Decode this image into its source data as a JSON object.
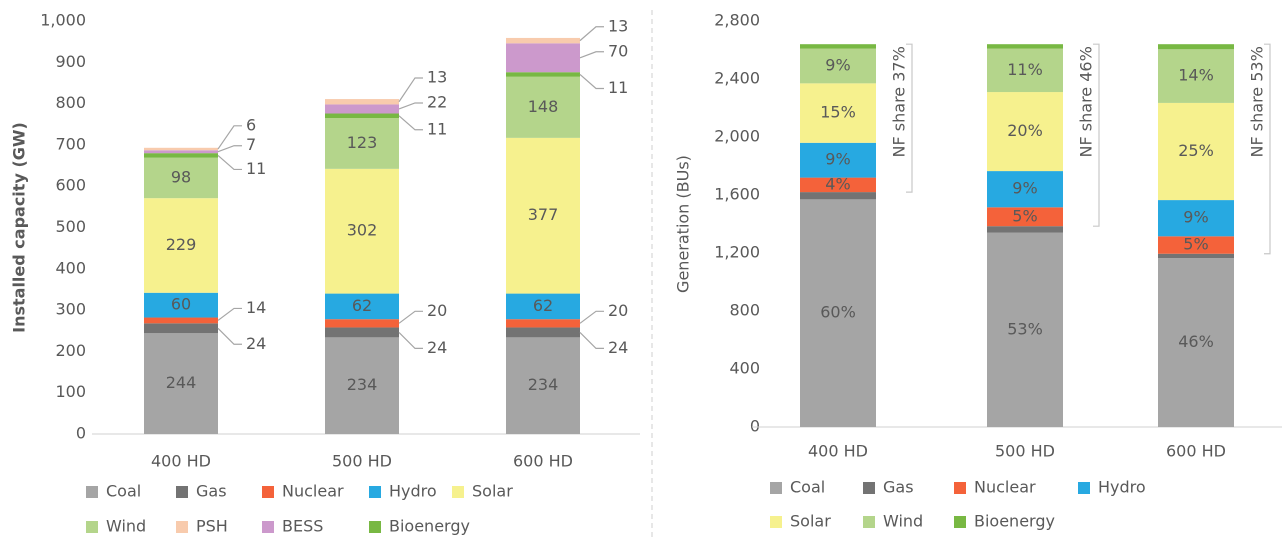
{
  "chart_data": [
    {
      "type": "bar",
      "stacked": true,
      "ylabel": "Installed capacity (GW)",
      "categories": [
        "400 HD",
        "500 HD",
        "600 HD"
      ],
      "ylim": [
        0,
        1000
      ],
      "yticks": [
        0,
        100,
        200,
        300,
        400,
        500,
        600,
        700,
        800,
        900,
        {
          "value": 1000,
          "label": "1,000"
        }
      ],
      "series": [
        {
          "name": "Coal",
          "color": "#a5a5a5",
          "values": [
            244,
            234,
            234
          ]
        },
        {
          "name": "Gas",
          "color": "#737373",
          "values": [
            24,
            24,
            24
          ]
        },
        {
          "name": "Nuclear",
          "color": "#f4623a",
          "values": [
            14,
            20,
            20
          ]
        },
        {
          "name": "Hydro",
          "color": "#27a9e1",
          "values": [
            60,
            62,
            62
          ]
        },
        {
          "name": "Solar",
          "color": "#f6f18e",
          "values": [
            229,
            302,
            377
          ]
        },
        {
          "name": "Wind",
          "color": "#b4d58b",
          "values": [
            98,
            123,
            148
          ]
        },
        {
          "name": "Bioenergy",
          "color": "#78b843",
          "values": [
            11,
            11,
            11
          ]
        },
        {
          "name": "BESS",
          "color": "#cc99cc",
          "values": [
            7,
            22,
            70
          ]
        },
        {
          "name": "PSH",
          "color": "#f8cbad",
          "values": [
            6,
            13,
            13
          ]
        }
      ]
    },
    {
      "type": "bar",
      "stacked": true,
      "ylabel": "Generation (BUs)",
      "categories": [
        "400 HD",
        "500 HD",
        "600 HD"
      ],
      "ylim": [
        0,
        2800
      ],
      "yticks": [
        0,
        400,
        800,
        {
          "value": 1200,
          "label": "1,200"
        },
        {
          "value": 1600,
          "label": "1,600"
        },
        {
          "value": 2000,
          "label": "2,000"
        },
        {
          "value": 2400,
          "label": "2,400"
        },
        {
          "value": 2800,
          "label": "2,800"
        }
      ],
      "annotations": [
        "NF share 37%",
        "NF share 46%",
        "NF share 53%"
      ],
      "series": [
        {
          "name": "Coal",
          "color": "#a5a5a5",
          "values": [
            1570,
            1340,
            1165
          ],
          "value_labels": [
            "60%",
            "53%",
            "46%"
          ]
        },
        {
          "name": "Gas",
          "color": "#737373",
          "values": [
            50,
            45,
            30
          ]
        },
        {
          "name": "Nuclear",
          "color": "#f4623a",
          "values": [
            100,
            130,
            120
          ],
          "value_labels": [
            "4%",
            "5%",
            "5%"
          ]
        },
        {
          "name": "Hydro",
          "color": "#27a9e1",
          "values": [
            240,
            250,
            250
          ],
          "value_labels": [
            "9%",
            "9%",
            "9%"
          ]
        },
        {
          "name": "Solar",
          "color": "#f6f18e",
          "values": [
            410,
            545,
            670
          ],
          "value_labels": [
            "15%",
            "20%",
            "25%"
          ]
        },
        {
          "name": "Wind",
          "color": "#b4d58b",
          "values": [
            240,
            300,
            370
          ],
          "value_labels": [
            "9%",
            "11%",
            "14%"
          ]
        },
        {
          "name": "Bioenergy",
          "color": "#78b843",
          "values": [
            30,
            30,
            35
          ]
        }
      ]
    }
  ]
}
